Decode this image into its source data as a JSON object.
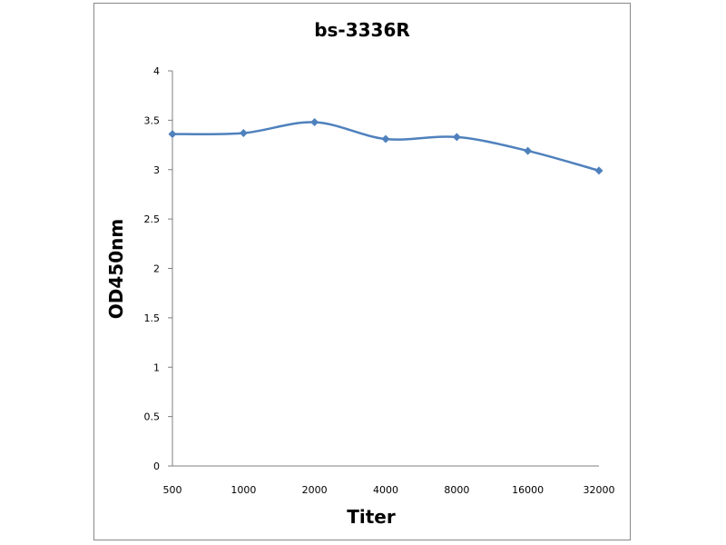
{
  "chart_data": {
    "type": "line",
    "title": "bs-3336R",
    "xlabel": "Titer",
    "ylabel": "OD450nm",
    "categories": [
      "500",
      "1000",
      "2000",
      "4000",
      "8000",
      "16000",
      "32000"
    ],
    "series": [
      {
        "values": [
          3.36,
          3.37,
          3.48,
          3.31,
          3.33,
          3.19,
          2.99
        ],
        "color": "#4F81BD"
      }
    ],
    "ylim": [
      0,
      4
    ],
    "yticks": [
      "0",
      "0.5",
      "1",
      "1.5",
      "2",
      "2.5",
      "3",
      "3.5",
      "4"
    ],
    "grid": false,
    "legend": "none",
    "axis_color": "#7F7F7F"
  }
}
